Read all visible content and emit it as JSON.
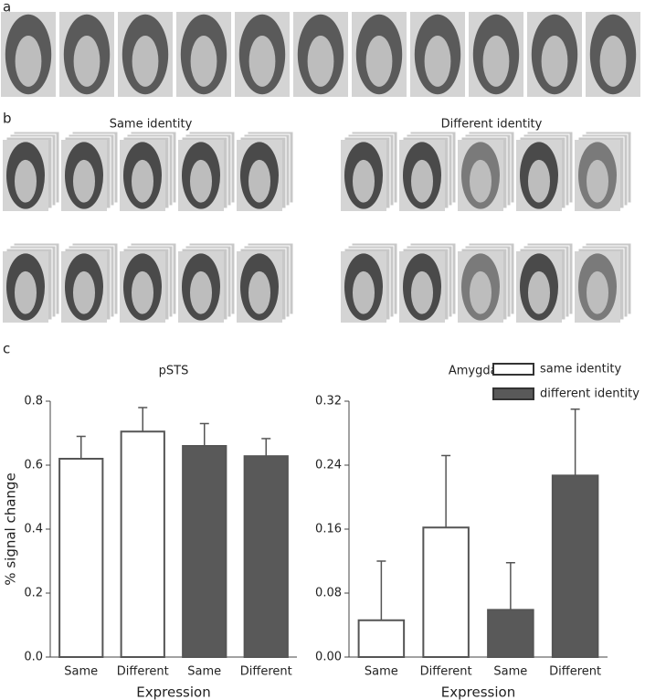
{
  "panel_labels": [
    "a",
    "b",
    "c"
  ],
  "group_titles": [
    "Same identity",
    "Different identity"
  ],
  "chart_data": [
    {
      "type": "bar",
      "title": "pSTS",
      "ylabel": "% signal change",
      "xlabel": "Expression",
      "categories": [
        "Same",
        "Different",
        "Same",
        "Different"
      ],
      "series": [
        {
          "color": "#ffffff",
          "values": [
            0.62,
            0.705,
            null,
            null
          ],
          "errors": [
            0.07,
            0.075,
            null,
            null
          ]
        },
        {
          "color": "#595959",
          "values": [
            null,
            null,
            0.66,
            0.628
          ],
          "errors": [
            null,
            null,
            0.07,
            0.055
          ]
        }
      ],
      "ylim": [
        0,
        0.8
      ],
      "yticks": [
        {
          "value": 0,
          "label": "0.0"
        },
        0.2,
        0.4,
        0.6,
        0.8
      ]
    },
    {
      "type": "bar",
      "title": "Amygdala",
      "xlabel": "Expression",
      "categories": [
        "Same",
        "Different",
        "Same",
        "Different"
      ],
      "series": [
        {
          "name": "same identity",
          "color": "#ffffff",
          "values": [
            0.046,
            0.162,
            null,
            null
          ],
          "errors": [
            0.074,
            0.09,
            null,
            null
          ]
        },
        {
          "name": "different identity",
          "color": "#595959",
          "values": [
            null,
            null,
            0.059,
            0.227
          ],
          "errors": [
            null,
            null,
            0.059,
            0.083
          ]
        }
      ],
      "ylim": [
        0,
        0.32
      ],
      "yticks": [
        {
          "value": 0,
          "label": "0.00"
        },
        0.08,
        0.16,
        0.24,
        0.32
      ],
      "legend": "top-right"
    }
  ]
}
